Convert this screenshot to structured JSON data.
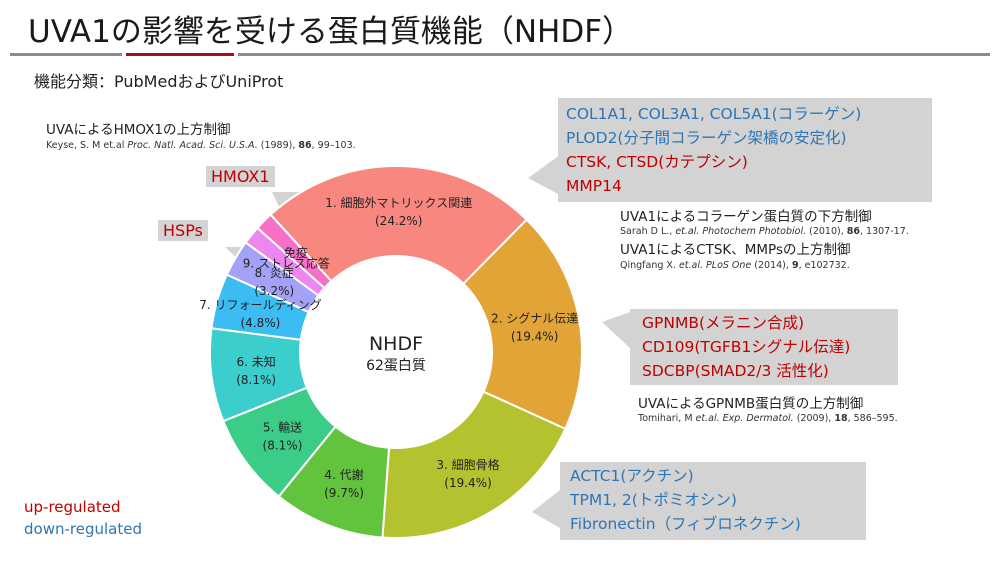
{
  "slide": {
    "title": "UVA1の影響を受ける蛋白質機能（NHDF）",
    "subtitle": "機能分類：PubMedおよびUniProt",
    "rule_colors": [
      "#8c8c8c",
      "#a50f15",
      "#8c8c8c"
    ]
  },
  "annotations": {
    "hmox1_heading": "UVAによるHMOX1の上方制御",
    "hmox1_ref": {
      "authors": "Keyse, S. M et.al ",
      "journal": "Proc. Natl. Acad. Sci. U.S.A.",
      "year": " (1989), ",
      "vol": "86",
      "pages": ", 99–103."
    },
    "collagen_heading": "UVA1によるコラーゲン蛋白質の下方制御",
    "collagen_ref": {
      "authors": "Sarah D L., ",
      "journal": "et.al. Photochem Photobiol.",
      "year": " (2010), ",
      "vol": "86",
      "pages": ", 1307-17."
    },
    "ctsk_heading": "UVA1によるCTSK、MMPsの上方制御",
    "ctsk_ref": {
      "authors": "Qingfang X. ",
      "journal": "et.al. PLoS One",
      "year": " (2014), ",
      "vol": "9",
      "pages": ", e102732."
    },
    "gpnmb_heading": "UVAによるGPNMB蛋白質の上方制御",
    "gpnmb_ref": {
      "authors": "Tomihari, M ",
      "journal": "et.al. Exp. Dermatol.",
      "year": " (2009), ",
      "vol": "18",
      "pages": ", 586–595."
    }
  },
  "callouts": {
    "ecm": [
      {
        "text": "COL1A1, COL3A1, COL5A1(コラーゲン)",
        "reg": "down"
      },
      {
        "text": "PLOD2(分子間コラーゲン架橋の安定化)",
        "reg": "down"
      },
      {
        "text": "CTSK, CTSD(カテプシン)",
        "reg": "up"
      },
      {
        "text": "MMP14",
        "reg": "up"
      }
    ],
    "signal": [
      {
        "text": "GPNMB(メラニン合成)",
        "reg": "up"
      },
      {
        "text": "CD109(TGFB1シグナル伝達)",
        "reg": "up"
      },
      {
        "text": "SDCBP(SMAD2/3 活性化)",
        "reg": "up"
      }
    ],
    "cytoskeleton": [
      {
        "text": "ACTC1(アクチン)",
        "reg": "down"
      },
      {
        "text": "TPM1, 2(トポミオシン)",
        "reg": "down"
      },
      {
        "text": "Fibronectin（フィブロネクチン)",
        "reg": "down"
      }
    ],
    "hmox1_tag": "HMOX1",
    "hsps_tag": "HSPs"
  },
  "legend": {
    "up_label": "up-regulated",
    "up_color": "#c00000",
    "down_label": "down-regulated",
    "down_color": "#2e75b6"
  },
  "chart_data": {
    "type": "donut",
    "center_title": "NHDF",
    "center_subtitle": "62蛋白質",
    "total": 62,
    "slices": [
      {
        "label": "1. 細胞外マトリックス関連",
        "pct_label": "(24.2%)",
        "value": 24.2,
        "color": "#f8877f"
      },
      {
        "label": "2. シグナル伝達",
        "pct_label": "(19.4%)",
        "value": 19.4,
        "color": "#e3a437"
      },
      {
        "label": "3. 細胞骨格",
        "pct_label": "(19.4%)",
        "value": 19.4,
        "color": "#b5c22f"
      },
      {
        "label": "4. 代謝",
        "pct_label": "(9.7%)",
        "value": 9.7,
        "color": "#62c33c"
      },
      {
        "label": "5. 輸送",
        "pct_label": "(8.1%)",
        "value": 8.1,
        "color": "#3bcd88"
      },
      {
        "label": "6. 未知",
        "pct_label": "(8.1%)",
        "value": 8.1,
        "color": "#3ccdcd"
      },
      {
        "label": "7. リフォールディング",
        "pct_label": "(4.8%)",
        "value": 4.8,
        "color": "#3bbcf3"
      },
      {
        "label": "8. 炎症",
        "pct_label": "(3.2%)",
        "value": 3.2,
        "color": "#a4a2f6"
      },
      {
        "label": "9. ストレス応答",
        "pct_label": "",
        "value": 1.6,
        "color": "#ee86f0"
      },
      {
        "label": "免疫",
        "pct_label": "",
        "value": 1.6,
        "color": "#f670c8"
      }
    ]
  }
}
